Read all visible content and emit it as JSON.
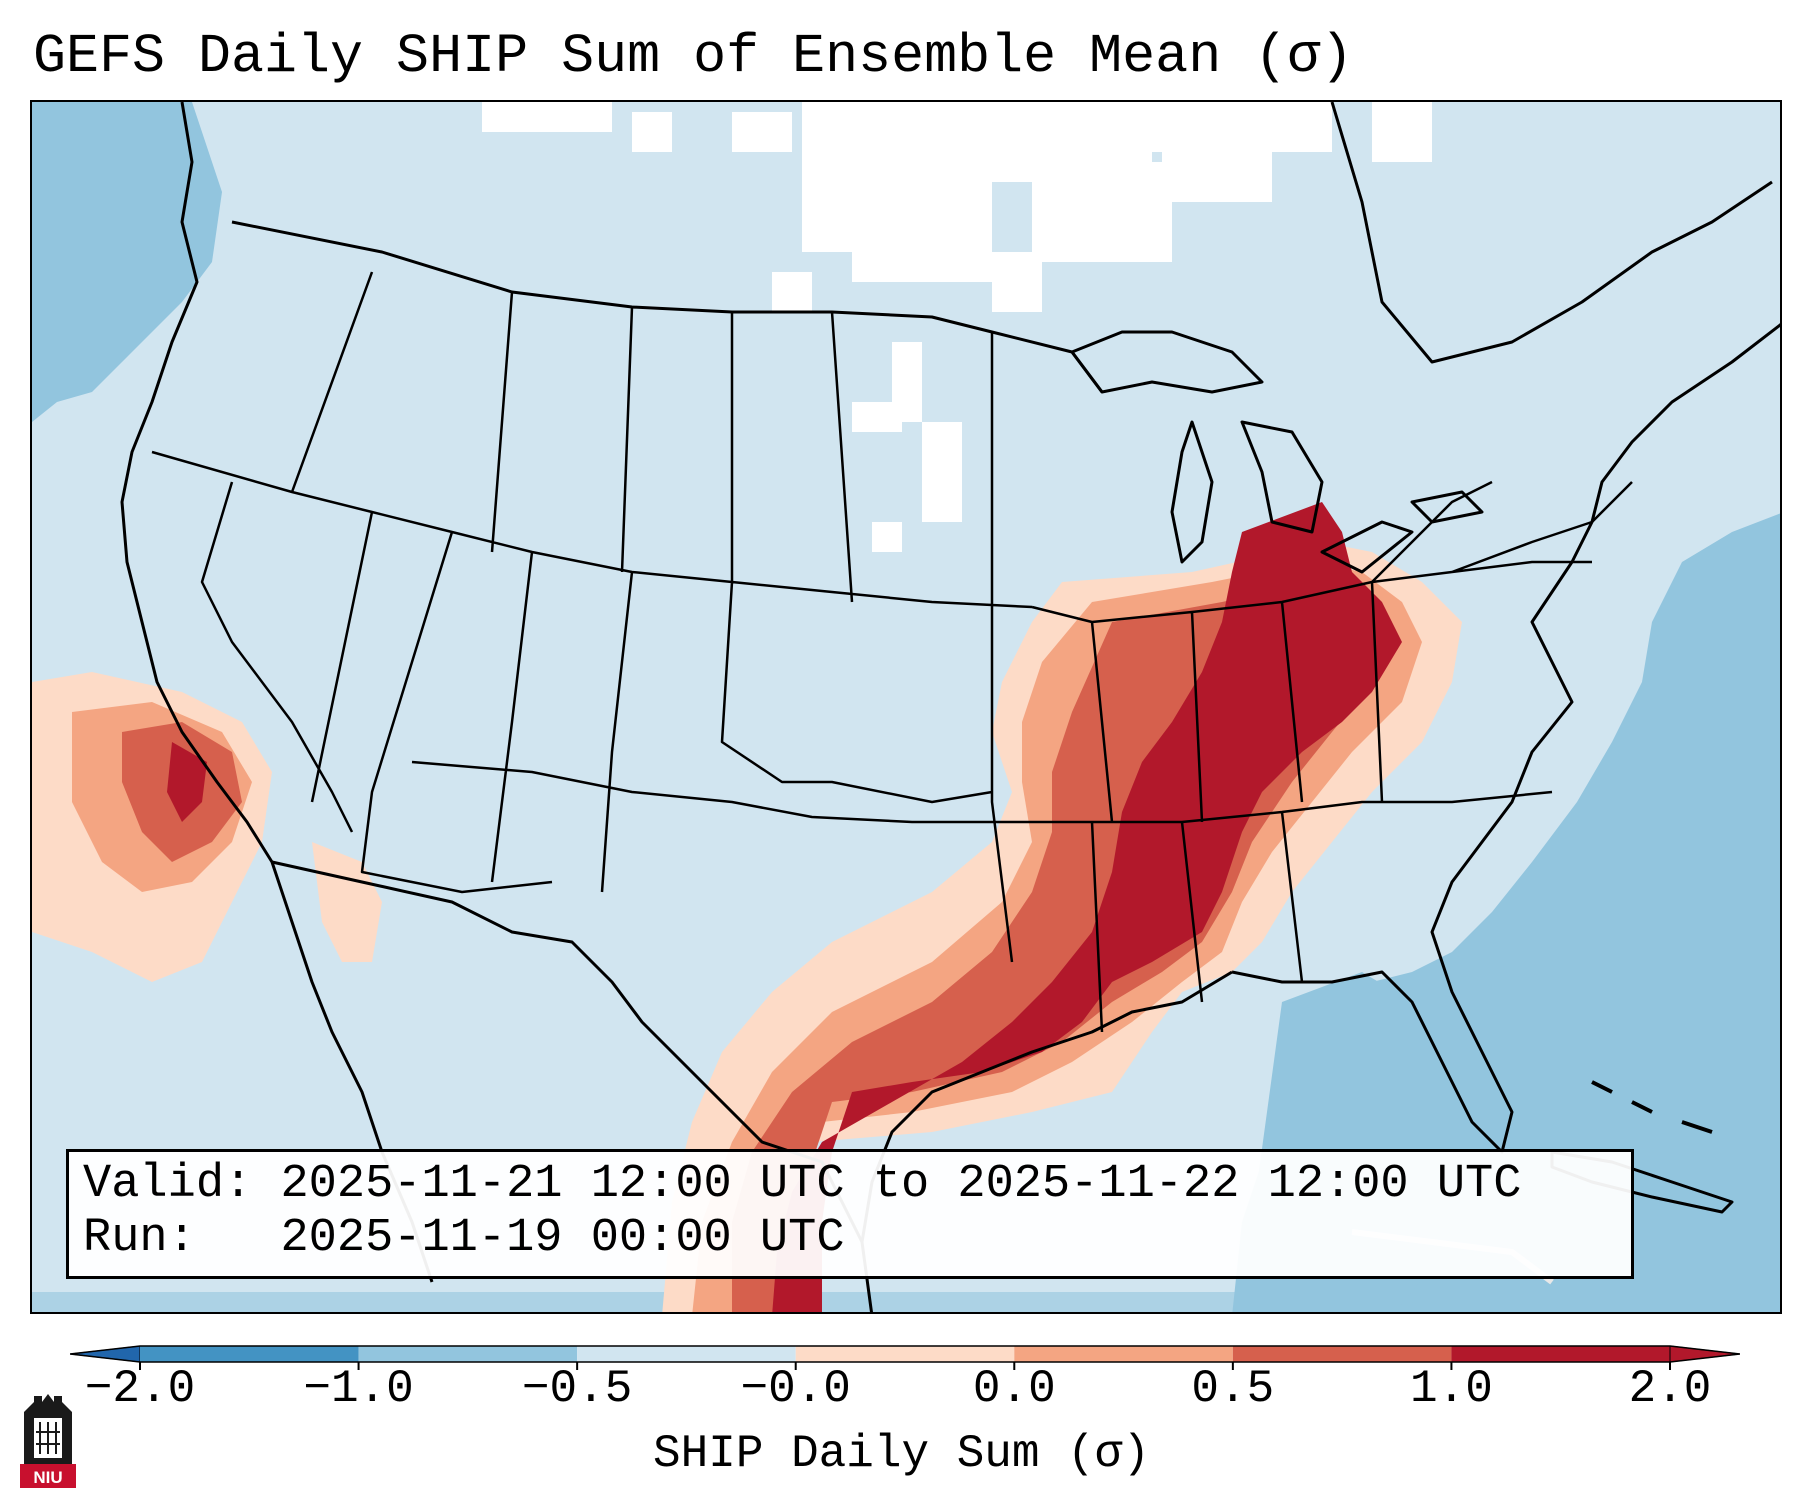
{
  "title": "GEFS Daily SHIP Sum of Ensemble Mean (σ)",
  "info": {
    "valid_label": "Valid:",
    "valid_value": "2025-11-21 12:00 UTC to 2025-11-22 12:00 UTC",
    "run_label": "Run:",
    "run_value": "2025-11-19 00:00 UTC"
  },
  "colorbar": {
    "label": "SHIP Daily Sum (σ)",
    "ticks": [
      "−2.0",
      "−1.0",
      "−0.5",
      "−0.0",
      "0.0",
      "0.5",
      "1.0",
      "2.0"
    ],
    "colors": [
      "#4393c3",
      "#92c5de",
      "#d1e5f0",
      "#ffffff",
      "#fddbc7",
      "#f4a582",
      "#d6604d",
      "#b2182b"
    ]
  },
  "logo": {
    "text": "NIU"
  },
  "palette": {
    "ocean_low": "#92c5de",
    "neutral_neg": "#d1e5f0",
    "neutral": "#ffffff",
    "pos_low": "#fddbc7",
    "pos_mid": "#f4a582",
    "pos_high": "#d6604d",
    "pos_max": "#b2182b"
  }
}
